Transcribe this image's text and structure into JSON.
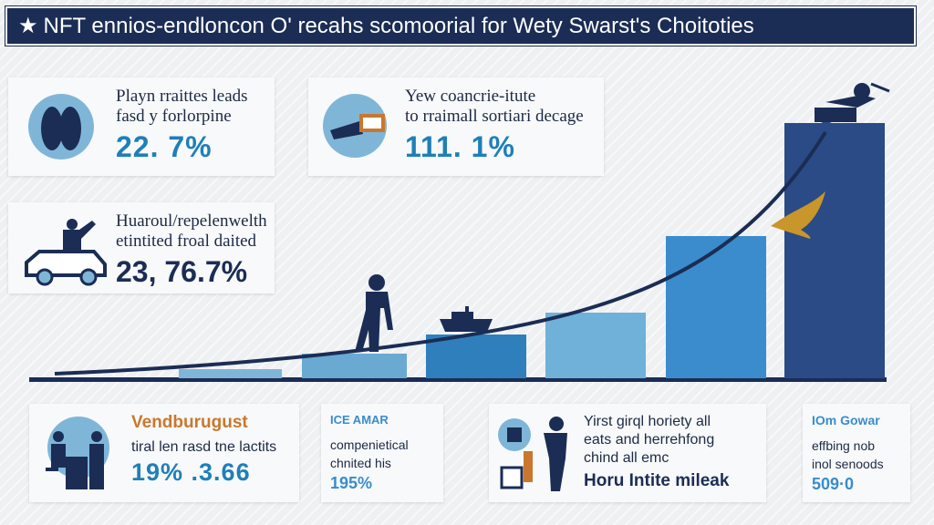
{
  "header": {
    "star": "★",
    "title": "NFT ennios-endloncon O' recahs scomoorial for Wety Swarst's Choitoties"
  },
  "cards": {
    "top_left": {
      "line1": "Playn rraittes leads",
      "line2": "fasd y forlorpine",
      "value": "22. 7%"
    },
    "top_mid": {
      "line1": "Yew coancrie-itute",
      "line2": "to rraimall sortiari decage",
      "value": "111. 1%"
    },
    "mid_left": {
      "line1": "Huaroul/repelenwelth",
      "line2": "etintited froal daited",
      "value": "23, 76.7%"
    },
    "bottom_1": {
      "heading": "Vendburugust",
      "line1": "tiral len rasd tne lactits",
      "value": "19% .3.66"
    },
    "bottom_2": {
      "heading": "ICE AMAR",
      "line1": "compenietical",
      "line2": "chnited his",
      "value": "195%"
    },
    "bottom_3": {
      "line1": "Yirst girql horiety all",
      "line2": "eats and herrehfong",
      "line3": "chind all emc",
      "value": "Horu Intite mileak"
    },
    "bottom_4": {
      "heading": "IOm Gowar",
      "line1": "effbing nob",
      "line2": "inol senoods",
      "value": "509·0"
    }
  },
  "colors": {
    "navy": "#1b2d55",
    "blue": "#1f7fb8",
    "light_blue": "#7fb6d8",
    "orange": "#c9772e",
    "gold": "#c8962a"
  },
  "icons": [
    "shoes-icon",
    "megaphone-icon",
    "car-icon",
    "runner-figure-icon",
    "office-worker-icon",
    "crowd-icon",
    "walking-man-icon",
    "boat-icon",
    "eagle-icon",
    "summit-figure-icon"
  ]
}
